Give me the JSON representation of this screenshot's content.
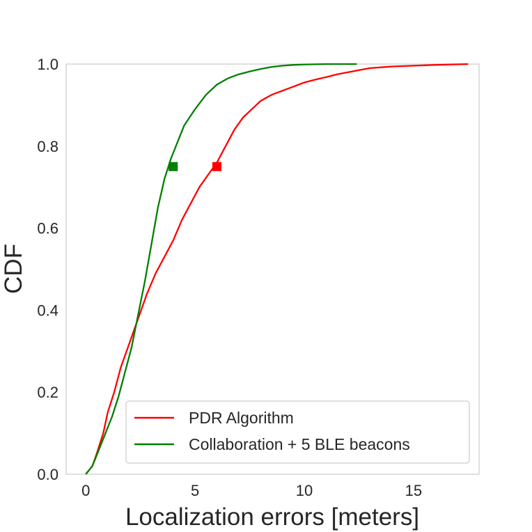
{
  "chart_data": {
    "type": "line",
    "title": "",
    "xlabel": "Localization errors [meters]",
    "ylabel": "CDF",
    "xlim": [
      -0.9,
      18
    ],
    "ylim": [
      0,
      1
    ],
    "x_ticks": [
      0,
      5,
      10,
      15
    ],
    "x_tick_labels": [
      "0",
      "5",
      "10",
      "15"
    ],
    "y_ticks": [
      0.0,
      0.2,
      0.4,
      0.6,
      0.8,
      1.0
    ],
    "y_tick_labels": [
      "0.0",
      "0.2",
      "0.4",
      "0.6",
      "0.8",
      "1.0"
    ],
    "grid": false,
    "legend_position": "lower-right",
    "series": [
      {
        "name": "PDR Algorithm",
        "color": "#ff0000",
        "x": [
          0,
          0.3,
          0.5,
          0.8,
          1.0,
          1.3,
          1.6,
          2.0,
          2.4,
          2.8,
          3.2,
          3.6,
          4.0,
          4.4,
          4.8,
          5.2,
          5.6,
          6.0,
          6.4,
          6.8,
          7.2,
          7.6,
          8.0,
          8.5,
          9.0,
          9.5,
          10.0,
          10.5,
          11.0,
          11.5,
          12.0,
          12.5,
          13.0,
          13.5,
          14.0,
          15.0,
          16.0,
          17.5
        ],
        "y": [
          0.0,
          0.02,
          0.05,
          0.1,
          0.15,
          0.2,
          0.26,
          0.32,
          0.38,
          0.44,
          0.49,
          0.53,
          0.57,
          0.62,
          0.66,
          0.7,
          0.73,
          0.76,
          0.8,
          0.84,
          0.87,
          0.89,
          0.91,
          0.925,
          0.935,
          0.945,
          0.955,
          0.962,
          0.968,
          0.975,
          0.98,
          0.985,
          0.99,
          0.992,
          0.994,
          0.996,
          0.998,
          1.0
        ],
        "marker": {
          "x": 6.0,
          "y": 0.75
        }
      },
      {
        "name": "Collaboration + 5 BLE beacons",
        "color": "#007f00",
        "x": [
          0,
          0.3,
          0.6,
          0.9,
          1.2,
          1.5,
          1.8,
          2.1,
          2.4,
          2.7,
          3.0,
          3.3,
          3.6,
          3.9,
          4.2,
          4.5,
          5.0,
          5.5,
          6.0,
          6.5,
          7.0,
          7.5,
          8.0,
          8.5,
          9.0,
          9.5,
          10.0,
          11.0,
          12.4
        ],
        "y": [
          0.0,
          0.02,
          0.06,
          0.1,
          0.14,
          0.19,
          0.25,
          0.31,
          0.39,
          0.47,
          0.56,
          0.65,
          0.72,
          0.77,
          0.81,
          0.85,
          0.89,
          0.925,
          0.95,
          0.965,
          0.975,
          0.982,
          0.988,
          0.993,
          0.996,
          0.998,
          0.999,
          1.0,
          1.0
        ],
        "marker": {
          "x": 4.0,
          "y": 0.75
        }
      }
    ]
  }
}
